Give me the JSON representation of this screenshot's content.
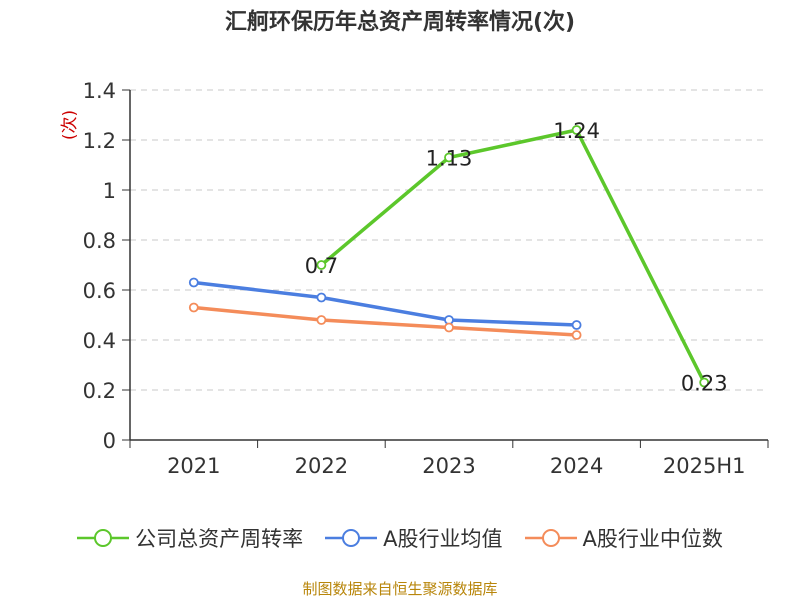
{
  "title": "汇舸环保历年总资产周转率情况(次)",
  "source": "制图数据来自恒生聚源数据库",
  "chart_data": {
    "type": "line",
    "categories": [
      "2021",
      "2022",
      "2023",
      "2024",
      "2025H1"
    ],
    "ylabel": "(次)",
    "ylim": [
      0,
      1.4
    ],
    "yticks": [
      0,
      0.2,
      0.4,
      0.6,
      0.8,
      1,
      1.2,
      1.4
    ],
    "ytick_labels": [
      "0",
      "0.2",
      "0.4",
      "0.6",
      "0.8",
      "1",
      "1.2",
      "1.4"
    ],
    "grid": true,
    "legend_position": "bottom",
    "series": [
      {
        "name": "公司总资产周转率",
        "color": "#5cc72b",
        "values": [
          null,
          0.7,
          1.13,
          1.24,
          0.23
        ],
        "labels": [
          null,
          "0.7",
          "1.13",
          "1.24",
          "0.23"
        ]
      },
      {
        "name": "A股行业均值",
        "color": "#4b7ee0",
        "values": [
          0.63,
          0.57,
          0.48,
          0.46,
          null
        ]
      },
      {
        "name": "A股行业中位数",
        "color": "#f48c5a",
        "values": [
          0.53,
          0.48,
          0.45,
          0.42,
          null
        ]
      }
    ]
  }
}
